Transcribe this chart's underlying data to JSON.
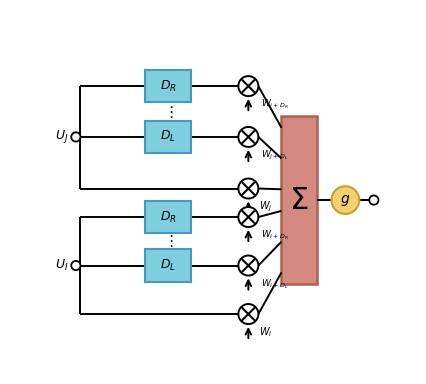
{
  "background": "#ffffff",
  "box_color": "#7ecfe0",
  "box_edge": "#4a9ab5",
  "sum_box_color": "#d48a80",
  "sum_box_edge": "#b06050",
  "g_circle_color": "#f5d070",
  "g_circle_edge": "#c8a030",
  "line_color": "#000000",
  "text_color": "#000000",
  "figw": 4.26,
  "figh": 3.84,
  "dpi": 100
}
